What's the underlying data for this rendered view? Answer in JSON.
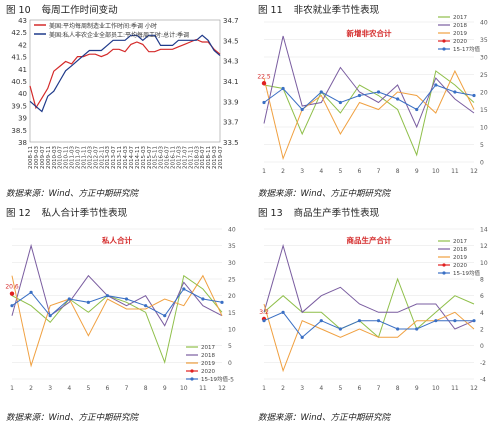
{
  "labels": {
    "fig_word": "图",
    "source_text": "数据来源：Wind、方正中期研究院"
  },
  "chart_data": [
    {
      "id": "fig10",
      "number": "10",
      "title": "每周工作时间变动",
      "type": "line",
      "dual_axis": true,
      "x": [
        "2008-11",
        "2009-03",
        "2009-07",
        "2009-11",
        "2010-03",
        "2010-07",
        "2010-11",
        "2011-03",
        "2011-07",
        "2011-11",
        "2012-03",
        "2012-07",
        "2012-11",
        "2013-03",
        "2013-07",
        "2013-11",
        "2014-03",
        "2014-07",
        "2014-11",
        "2015-03",
        "2015-07",
        "2015-11",
        "2016-03",
        "2016-07",
        "2016-11",
        "2017-03",
        "2017-07",
        "2017-11",
        "2018-03",
        "2018-07",
        "2018-11",
        "2019-03",
        "2019-07"
      ],
      "ylim_left": [
        38,
        43
      ],
      "yticks_left": [
        "38",
        "38.5",
        "39",
        "39.5",
        "40",
        "40.5",
        "41",
        "41.5",
        "42",
        "42.5",
        "43"
      ],
      "ylim_right": [
        33.5,
        34.7
      ],
      "yticks_right": [
        "33.5",
        "33.7",
        "33.9",
        "34.1",
        "34.3",
        "34.5",
        "34.7"
      ],
      "legend_position": "top",
      "series": [
        {
          "name": "美国:平均每周制造业工作时间:季调 小时",
          "axis": "left",
          "color": "#d42a2a",
          "values": [
            40.3,
            39.4,
            39.8,
            40.2,
            40.9,
            41.1,
            41.3,
            41.2,
            41.5,
            41.5,
            41.6,
            41.6,
            41.5,
            41.6,
            41.8,
            41.8,
            41.7,
            42.0,
            42.1,
            42.0,
            41.7,
            41.7,
            41.8,
            41.8,
            41.8,
            41.9,
            42.0,
            42.1,
            42.2,
            42.1,
            42.1,
            41.8,
            41.6
          ]
        },
        {
          "name": "美国:私人非农企业全部员工:平均每周工时:总计:季调",
          "axis": "right",
          "color": "#1f3a8a",
          "values": [
            33.9,
            33.85,
            33.8,
            33.95,
            34.0,
            34.1,
            34.2,
            34.25,
            34.3,
            34.35,
            34.4,
            34.4,
            34.4,
            34.45,
            34.5,
            34.5,
            34.5,
            34.55,
            34.55,
            34.5,
            34.55,
            34.55,
            34.45,
            34.45,
            34.45,
            34.5,
            34.5,
            34.5,
            34.5,
            34.55,
            34.5,
            34.4,
            34.35
          ]
        }
      ]
    },
    {
      "id": "fig11",
      "number": "11",
      "title": "非农就业季节性表现",
      "inner_title": "新增非农合计",
      "type": "line",
      "categories": [
        "1",
        "2",
        "3",
        "4",
        "5",
        "6",
        "7",
        "8",
        "9",
        "10",
        "11",
        "12"
      ],
      "ylim": [
        0,
        40
      ],
      "yticks": [
        "0",
        "5",
        "10",
        "15",
        "20",
        "25",
        "30",
        "35",
        "40"
      ],
      "legend_position": "top-right",
      "annotation": "22.5",
      "series": [
        {
          "name": "2017",
          "color": "#8fbf4a",
          "values": [
            22,
            21,
            8,
            20,
            14,
            22,
            19,
            15,
            2,
            26,
            22,
            17
          ]
        },
        {
          "name": "2018",
          "color": "#7a5da0",
          "values": [
            11,
            36,
            16,
            17,
            27,
            20,
            17,
            22,
            10,
            24,
            18,
            14
          ]
        },
        {
          "name": "2019",
          "color": "#f0a040",
          "values": [
            24,
            1,
            15,
            19,
            8,
            17,
            15,
            20,
            19,
            14,
            26,
            15
          ]
        },
        {
          "name": "2020",
          "color": "#e02020",
          "marker": true,
          "values": [
            22.5,
            null,
            null,
            null,
            null,
            null,
            null,
            null,
            null,
            null,
            null,
            null
          ]
        },
        {
          "name": "15-17均值",
          "color": "#3a6fc4",
          "marker": true,
          "values": [
            17,
            21,
            15,
            20,
            17,
            19,
            20,
            18,
            15,
            22,
            20,
            19
          ]
        }
      ]
    },
    {
      "id": "fig12",
      "number": "12",
      "title": "私人合计季节性表现",
      "inner_title": "私人合计",
      "type": "line",
      "categories": [
        "1",
        "2",
        "3",
        "4",
        "5",
        "6",
        "7",
        "8",
        "9",
        "10",
        "11",
        "12"
      ],
      "ylim": [
        -5,
        40
      ],
      "yticks": [
        "-5",
        "0",
        "5",
        "10",
        "15",
        "20",
        "25",
        "30",
        "35",
        "40"
      ],
      "legend_position": "bottom-right",
      "annotation": "20.6",
      "series": [
        {
          "name": "2017",
          "color": "#8fbf4a",
          "values": [
            20,
            17,
            12,
            19,
            15,
            20,
            18,
            15,
            0,
            26,
            22,
            15
          ]
        },
        {
          "name": "2018",
          "color": "#7a5da0",
          "values": [
            14,
            35,
            14,
            18,
            26,
            20,
            17,
            20,
            11,
            24,
            17,
            14
          ]
        },
        {
          "name": "2019",
          "color": "#f0a040",
          "values": [
            26,
            -1,
            17,
            19,
            8,
            19,
            16,
            16,
            19,
            17,
            26,
            14
          ]
        },
        {
          "name": "2020",
          "color": "#e02020",
          "marker": true,
          "values": [
            20.6,
            null,
            null,
            null,
            null,
            null,
            null,
            null,
            null,
            null,
            null,
            null
          ]
        },
        {
          "name": "15-19均值",
          "color": "#3a6fc4",
          "marker": true,
          "values": [
            17,
            21,
            14,
            19,
            18,
            20,
            19,
            17,
            14,
            22,
            19,
            18
          ]
        }
      ]
    },
    {
      "id": "fig13",
      "number": "13",
      "title": "商品生产季节性表现",
      "inner_title": "商品生产合计",
      "type": "line",
      "categories": [
        "1",
        "2",
        "3",
        "4",
        "5",
        "6",
        "7",
        "8",
        "9",
        "10",
        "11",
        "12"
      ],
      "ylim": [
        -4,
        14
      ],
      "yticks": [
        "-4",
        "-2",
        "0",
        "2",
        "4",
        "6",
        "8",
        "10",
        "12",
        "14"
      ],
      "legend_position": "top-right",
      "annotation": "3.2",
      "series": [
        {
          "name": "2017",
          "color": "#8fbf4a",
          "values": [
            4,
            6,
            4,
            4,
            2,
            3,
            1,
            8,
            2,
            4,
            6,
            5
          ]
        },
        {
          "name": "2018",
          "color": "#7a5da0",
          "values": [
            4,
            12,
            4,
            6,
            7,
            5,
            4,
            4,
            5,
            5,
            2,
            3
          ]
        },
        {
          "name": "2019",
          "color": "#f0a040",
          "values": [
            5,
            -3,
            3,
            2,
            1,
            2,
            1,
            1,
            3,
            3,
            4,
            2
          ]
        },
        {
          "name": "2020",
          "color": "#e02020",
          "marker": true,
          "values": [
            3.2,
            null,
            null,
            null,
            null,
            null,
            null,
            null,
            null,
            null,
            null,
            null
          ]
        },
        {
          "name": "15-19均值",
          "color": "#3a6fc4",
          "marker": true,
          "values": [
            3,
            4,
            1,
            3,
            2,
            3,
            3,
            2,
            2,
            3,
            3,
            3
          ]
        }
      ]
    }
  ]
}
